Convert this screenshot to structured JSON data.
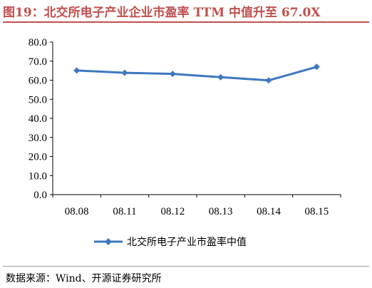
{
  "title": "图19：北交所电子产业企业市盈率 TTM 中值升至 67.0X",
  "source": "数据来源：Wind、开源证券研究所",
  "colors": {
    "accent": "#c0504d",
    "series": "#3d78bf"
  },
  "chart_data": {
    "type": "line",
    "categories": [
      "08.08",
      "08.11",
      "08.12",
      "08.13",
      "08.14",
      "08.15"
    ],
    "series": [
      {
        "name": "北交所电子产业市盈率中值",
        "values": [
          65.1,
          63.9,
          63.3,
          61.6,
          59.9,
          67.0
        ],
        "marker": "diamond"
      }
    ],
    "yticks": [
      "0.0",
      "10.0",
      "20.0",
      "30.0",
      "40.0",
      "50.0",
      "60.0",
      "70.0",
      "80.0"
    ],
    "ylim": [
      0,
      80
    ],
    "xlabel": "",
    "ylabel": "",
    "grid": false,
    "legend_position": "bottom"
  }
}
